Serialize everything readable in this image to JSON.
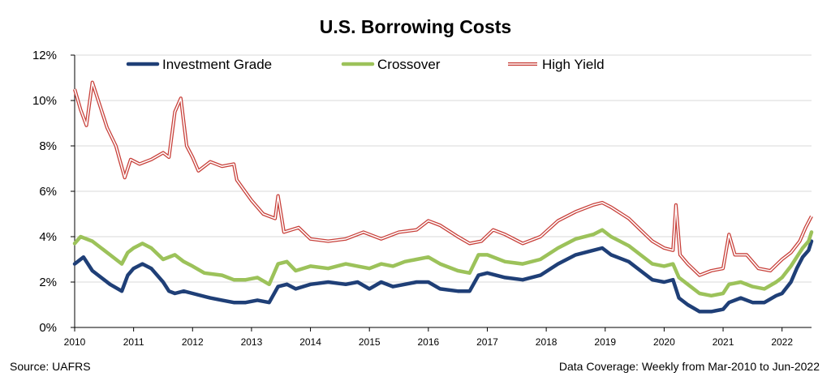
{
  "chart_data": {
    "type": "line",
    "title": "U.S. Borrowing Costs",
    "xlabel": "",
    "ylabel": "",
    "source": "Source: UAFRS",
    "coverage": "Data Coverage: Weekly from Mar-2010 to Jun-2022",
    "x_ticks": [
      "2010",
      "2011",
      "2012",
      "2013",
      "2014",
      "2015",
      "2016",
      "2017",
      "2018",
      "2019",
      "2020",
      "2021",
      "2022"
    ],
    "y_ticks": [
      "0%",
      "2%",
      "4%",
      "6%",
      "8%",
      "10%",
      "12%"
    ],
    "xlim": [
      2010.0,
      2022.5
    ],
    "ylim": [
      0,
      12
    ],
    "grid": "horizontal",
    "legend_position": "top",
    "series": [
      {
        "name": "Investment Grade",
        "color": "#1f3f77",
        "style": "thick-solid",
        "points": [
          [
            2010.0,
            2.8
          ],
          [
            2010.15,
            3.1
          ],
          [
            2010.3,
            2.5
          ],
          [
            2010.5,
            2.1
          ],
          [
            2010.6,
            1.9
          ],
          [
            2010.8,
            1.6
          ],
          [
            2010.9,
            2.3
          ],
          [
            2011.0,
            2.6
          ],
          [
            2011.15,
            2.8
          ],
          [
            2011.3,
            2.6
          ],
          [
            2011.5,
            2.0
          ],
          [
            2011.6,
            1.6
          ],
          [
            2011.7,
            1.5
          ],
          [
            2011.85,
            1.6
          ],
          [
            2012.0,
            1.5
          ],
          [
            2012.3,
            1.3
          ],
          [
            2012.5,
            1.2
          ],
          [
            2012.7,
            1.1
          ],
          [
            2012.9,
            1.1
          ],
          [
            2013.1,
            1.2
          ],
          [
            2013.3,
            1.1
          ],
          [
            2013.45,
            1.8
          ],
          [
            2013.6,
            1.9
          ],
          [
            2013.75,
            1.7
          ],
          [
            2014.0,
            1.9
          ],
          [
            2014.3,
            2.0
          ],
          [
            2014.6,
            1.9
          ],
          [
            2014.8,
            2.0
          ],
          [
            2015.0,
            1.7
          ],
          [
            2015.2,
            2.0
          ],
          [
            2015.4,
            1.8
          ],
          [
            2015.6,
            1.9
          ],
          [
            2015.8,
            2.0
          ],
          [
            2016.0,
            2.0
          ],
          [
            2016.2,
            1.7
          ],
          [
            2016.5,
            1.6
          ],
          [
            2016.7,
            1.6
          ],
          [
            2016.85,
            2.3
          ],
          [
            2017.0,
            2.4
          ],
          [
            2017.3,
            2.2
          ],
          [
            2017.6,
            2.1
          ],
          [
            2017.9,
            2.3
          ],
          [
            2018.2,
            2.8
          ],
          [
            2018.5,
            3.2
          ],
          [
            2018.8,
            3.4
          ],
          [
            2018.95,
            3.5
          ],
          [
            2019.1,
            3.2
          ],
          [
            2019.4,
            2.9
          ],
          [
            2019.6,
            2.5
          ],
          [
            2019.8,
            2.1
          ],
          [
            2020.0,
            2.0
          ],
          [
            2020.15,
            2.1
          ],
          [
            2020.25,
            1.3
          ],
          [
            2020.4,
            1.0
          ],
          [
            2020.6,
            0.7
          ],
          [
            2020.8,
            0.7
          ],
          [
            2021.0,
            0.8
          ],
          [
            2021.1,
            1.1
          ],
          [
            2021.3,
            1.3
          ],
          [
            2021.5,
            1.1
          ],
          [
            2021.7,
            1.1
          ],
          [
            2021.9,
            1.4
          ],
          [
            2022.0,
            1.5
          ],
          [
            2022.15,
            2.0
          ],
          [
            2022.25,
            2.6
          ],
          [
            2022.35,
            3.1
          ],
          [
            2022.45,
            3.4
          ],
          [
            2022.5,
            3.8
          ]
        ]
      },
      {
        "name": "Crossover",
        "color": "#9cc25a",
        "style": "thick-solid",
        "points": [
          [
            2010.0,
            3.7
          ],
          [
            2010.1,
            4.0
          ],
          [
            2010.3,
            3.8
          ],
          [
            2010.45,
            3.5
          ],
          [
            2010.6,
            3.2
          ],
          [
            2010.8,
            2.8
          ],
          [
            2010.9,
            3.3
          ],
          [
            2011.0,
            3.5
          ],
          [
            2011.15,
            3.7
          ],
          [
            2011.3,
            3.5
          ],
          [
            2011.5,
            3.0
          ],
          [
            2011.7,
            3.2
          ],
          [
            2011.85,
            2.9
          ],
          [
            2012.0,
            2.7
          ],
          [
            2012.2,
            2.4
          ],
          [
            2012.5,
            2.3
          ],
          [
            2012.7,
            2.1
          ],
          [
            2012.9,
            2.1
          ],
          [
            2013.1,
            2.2
          ],
          [
            2013.3,
            1.9
          ],
          [
            2013.45,
            2.8
          ],
          [
            2013.6,
            2.9
          ],
          [
            2013.75,
            2.5
          ],
          [
            2014.0,
            2.7
          ],
          [
            2014.3,
            2.6
          ],
          [
            2014.6,
            2.8
          ],
          [
            2014.8,
            2.7
          ],
          [
            2015.0,
            2.6
          ],
          [
            2015.2,
            2.8
          ],
          [
            2015.4,
            2.7
          ],
          [
            2015.6,
            2.9
          ],
          [
            2015.8,
            3.0
          ],
          [
            2016.0,
            3.1
          ],
          [
            2016.2,
            2.8
          ],
          [
            2016.5,
            2.5
          ],
          [
            2016.7,
            2.4
          ],
          [
            2016.85,
            3.2
          ],
          [
            2017.0,
            3.2
          ],
          [
            2017.3,
            2.9
          ],
          [
            2017.6,
            2.8
          ],
          [
            2017.9,
            3.0
          ],
          [
            2018.2,
            3.5
          ],
          [
            2018.5,
            3.9
          ],
          [
            2018.8,
            4.1
          ],
          [
            2018.95,
            4.3
          ],
          [
            2019.1,
            4.0
          ],
          [
            2019.4,
            3.6
          ],
          [
            2019.6,
            3.2
          ],
          [
            2019.8,
            2.8
          ],
          [
            2020.0,
            2.7
          ],
          [
            2020.15,
            2.8
          ],
          [
            2020.25,
            2.2
          ],
          [
            2020.4,
            1.9
          ],
          [
            2020.6,
            1.5
          ],
          [
            2020.8,
            1.4
          ],
          [
            2021.0,
            1.5
          ],
          [
            2021.1,
            1.9
          ],
          [
            2021.3,
            2.0
          ],
          [
            2021.5,
            1.8
          ],
          [
            2021.7,
            1.7
          ],
          [
            2021.9,
            2.0
          ],
          [
            2022.0,
            2.2
          ],
          [
            2022.15,
            2.7
          ],
          [
            2022.25,
            3.1
          ],
          [
            2022.35,
            3.5
          ],
          [
            2022.45,
            3.8
          ],
          [
            2022.5,
            4.2
          ]
        ]
      },
      {
        "name": "High Yield",
        "color": "#c8413b",
        "style": "double-line",
        "points": [
          [
            2010.0,
            10.5
          ],
          [
            2010.1,
            9.6
          ],
          [
            2010.2,
            8.9
          ],
          [
            2010.3,
            10.8
          ],
          [
            2010.4,
            10.0
          ],
          [
            2010.55,
            8.8
          ],
          [
            2010.7,
            8.0
          ],
          [
            2010.85,
            6.6
          ],
          [
            2010.95,
            7.4
          ],
          [
            2011.1,
            7.2
          ],
          [
            2011.3,
            7.4
          ],
          [
            2011.5,
            7.7
          ],
          [
            2011.6,
            7.5
          ],
          [
            2011.7,
            9.5
          ],
          [
            2011.8,
            10.1
          ],
          [
            2011.9,
            8.0
          ],
          [
            2012.0,
            7.5
          ],
          [
            2012.1,
            6.9
          ],
          [
            2012.3,
            7.3
          ],
          [
            2012.5,
            7.1
          ],
          [
            2012.7,
            7.2
          ],
          [
            2012.75,
            6.5
          ],
          [
            2013.0,
            5.6
          ],
          [
            2013.2,
            5.0
          ],
          [
            2013.4,
            4.8
          ],
          [
            2013.45,
            5.8
          ],
          [
            2013.55,
            4.2
          ],
          [
            2013.8,
            4.4
          ],
          [
            2014.0,
            3.9
          ],
          [
            2014.3,
            3.8
          ],
          [
            2014.6,
            3.9
          ],
          [
            2014.9,
            4.2
          ],
          [
            2015.2,
            3.9
          ],
          [
            2015.5,
            4.2
          ],
          [
            2015.8,
            4.3
          ],
          [
            2016.0,
            4.7
          ],
          [
            2016.2,
            4.5
          ],
          [
            2016.5,
            4.0
          ],
          [
            2016.7,
            3.7
          ],
          [
            2016.9,
            3.8
          ],
          [
            2017.1,
            4.3
          ],
          [
            2017.3,
            4.1
          ],
          [
            2017.6,
            3.7
          ],
          [
            2017.9,
            4.0
          ],
          [
            2018.2,
            4.7
          ],
          [
            2018.5,
            5.1
          ],
          [
            2018.8,
            5.4
          ],
          [
            2018.95,
            5.5
          ],
          [
            2019.1,
            5.3
          ],
          [
            2019.4,
            4.8
          ],
          [
            2019.6,
            4.3
          ],
          [
            2019.8,
            3.8
          ],
          [
            2020.0,
            3.5
          ],
          [
            2020.15,
            3.4
          ],
          [
            2020.2,
            5.4
          ],
          [
            2020.27,
            3.2
          ],
          [
            2020.4,
            2.8
          ],
          [
            2020.6,
            2.3
          ],
          [
            2020.8,
            2.5
          ],
          [
            2021.0,
            2.6
          ],
          [
            2021.1,
            4.1
          ],
          [
            2021.2,
            3.2
          ],
          [
            2021.4,
            3.2
          ],
          [
            2021.6,
            2.6
          ],
          [
            2021.8,
            2.5
          ],
          [
            2022.0,
            3.0
          ],
          [
            2022.15,
            3.3
          ],
          [
            2022.3,
            3.8
          ],
          [
            2022.4,
            4.4
          ],
          [
            2022.5,
            4.9
          ]
        ]
      }
    ]
  }
}
